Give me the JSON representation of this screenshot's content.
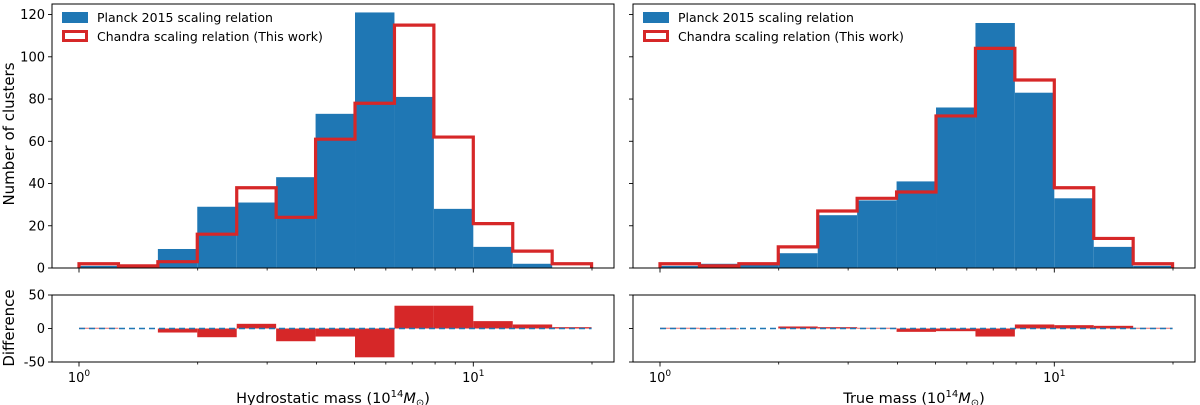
{
  "figure": {
    "ylabel_top": "Number of clusters",
    "ylabel_bottom": "Difference"
  },
  "colors": {
    "planck": "#1f77b4",
    "chandra": "#d62728",
    "zero_line": "#1f77b4"
  },
  "chart_data": [
    {
      "type": "bar",
      "panel": "top-left",
      "x_scale": "log",
      "xlim": [
        1,
        20
      ],
      "ylim": [
        0,
        125
      ],
      "yticks": [
        0,
        20,
        40,
        60,
        80,
        100,
        120
      ],
      "bin_edges": [
        1.0,
        1.259,
        1.585,
        1.995,
        2.512,
        3.162,
        3.981,
        5.012,
        6.31,
        7.943,
        10.0,
        12.59,
        15.85,
        19.95
      ],
      "series": [
        {
          "name": "Planck 2015 scaling relation",
          "style": "filled",
          "values": [
            1,
            1,
            9,
            29,
            31,
            43,
            73,
            121,
            81,
            28,
            10,
            2,
            0
          ]
        },
        {
          "name": "Chandra scaling relation (This work)",
          "style": "step",
          "values": [
            2,
            1,
            3,
            16,
            38,
            24,
            61,
            78,
            115,
            62,
            21,
            8,
            2
          ]
        }
      ],
      "legend": "upper-left"
    },
    {
      "type": "bar",
      "panel": "top-right",
      "x_scale": "log",
      "xlim": [
        1,
        20
      ],
      "ylim": [
        0,
        125
      ],
      "yticks": [
        0,
        20,
        40,
        60,
        80,
        100,
        120
      ],
      "bin_edges": [
        1.0,
        1.259,
        1.585,
        1.995,
        2.512,
        3.162,
        3.981,
        5.012,
        6.31,
        7.943,
        10.0,
        12.59,
        15.85,
        19.95
      ],
      "series": [
        {
          "name": "Planck 2015 scaling relation",
          "style": "filled",
          "values": [
            1,
            2,
            2,
            7,
            25,
            32,
            41,
            76,
            116,
            83,
            33,
            10,
            1
          ]
        },
        {
          "name": "Chandra scaling relation (This work)",
          "style": "step",
          "values": [
            2,
            1,
            2,
            10,
            27,
            33,
            36,
            72,
            104,
            89,
            38,
            14,
            2
          ]
        }
      ],
      "legend": "upper-left"
    },
    {
      "type": "bar",
      "panel": "bottom-left",
      "x_scale": "log",
      "xlim": [
        1,
        20
      ],
      "ylim": [
        -50,
        50
      ],
      "yticks": [
        -50,
        0,
        50
      ],
      "xticks": [
        {
          "value": 1,
          "base": "10",
          "exp": "0"
        },
        {
          "value": 10,
          "base": "10",
          "exp": "1"
        }
      ],
      "xlabel": {
        "text": "Hydrostatic mass (10",
        "exp": "14",
        "unit_m": "M",
        "unit_sub": "⊙",
        "close": ")"
      },
      "bin_edges": [
        1.0,
        1.259,
        1.585,
        1.995,
        2.512,
        3.162,
        3.981,
        5.012,
        6.31,
        7.943,
        10.0,
        12.59,
        15.85,
        19.95
      ],
      "differences": [
        1,
        0,
        -6,
        -13,
        7,
        -19,
        -12,
        -43,
        34,
        34,
        11,
        6,
        2
      ]
    },
    {
      "type": "bar",
      "panel": "bottom-right",
      "x_scale": "log",
      "xlim": [
        1,
        20
      ],
      "ylim": [
        -50,
        50
      ],
      "yticks": [
        -50,
        0,
        50
      ],
      "xticks": [
        {
          "value": 1,
          "base": "10",
          "exp": "0"
        },
        {
          "value": 10,
          "base": "10",
          "exp": "1"
        }
      ],
      "xlabel": {
        "text": "True mass (10",
        "exp": "14",
        "unit_m": "M",
        "unit_sub": "⊙",
        "close": ")"
      },
      "bin_edges": [
        1.0,
        1.259,
        1.585,
        1.995,
        2.512,
        3.162,
        3.981,
        5.012,
        6.31,
        7.943,
        10.0,
        12.59,
        15.85,
        19.95
      ],
      "differences": [
        1,
        -1,
        0,
        3,
        2,
        1,
        -5,
        -4,
        -12,
        6,
        5,
        4,
        1
      ]
    }
  ]
}
